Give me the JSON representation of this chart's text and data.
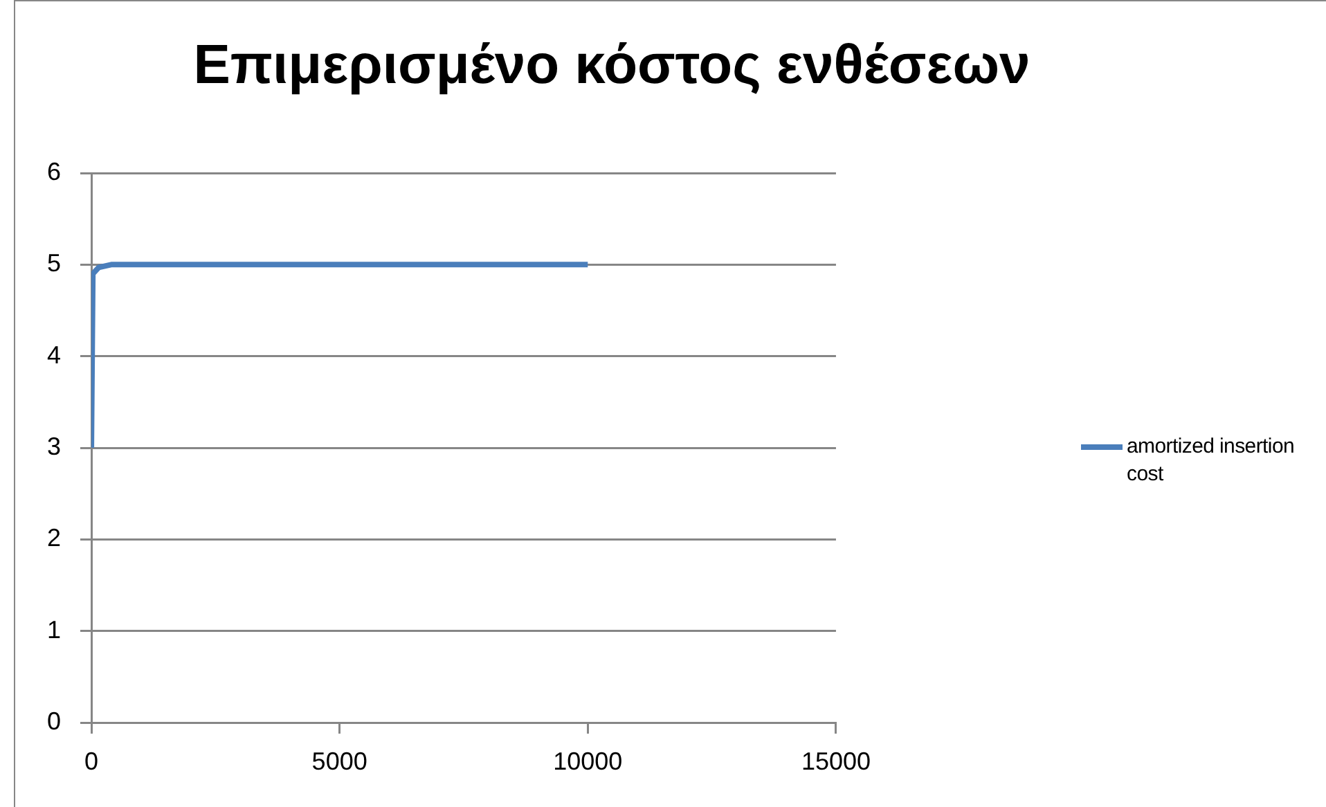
{
  "chart_data": {
    "type": "line",
    "title": "Επιμερισμένο κόστος ενθέσεων",
    "x": [
      1,
      30,
      150,
      400,
      10000
    ],
    "series": [
      {
        "name": "amortized insertion cost",
        "color": "#4a7ebb",
        "values": [
          3,
          4.9,
          4.97,
          5,
          5
        ]
      }
    ],
    "xlim": [
      0,
      15000
    ],
    "xticks": [
      0,
      5000,
      10000,
      15000
    ],
    "ylim": [
      0,
      6
    ],
    "yticks": [
      0,
      1,
      2,
      3,
      4,
      5,
      6
    ],
    "grid": "y",
    "legend": "right",
    "marker": "none",
    "line_style": "solid"
  }
}
